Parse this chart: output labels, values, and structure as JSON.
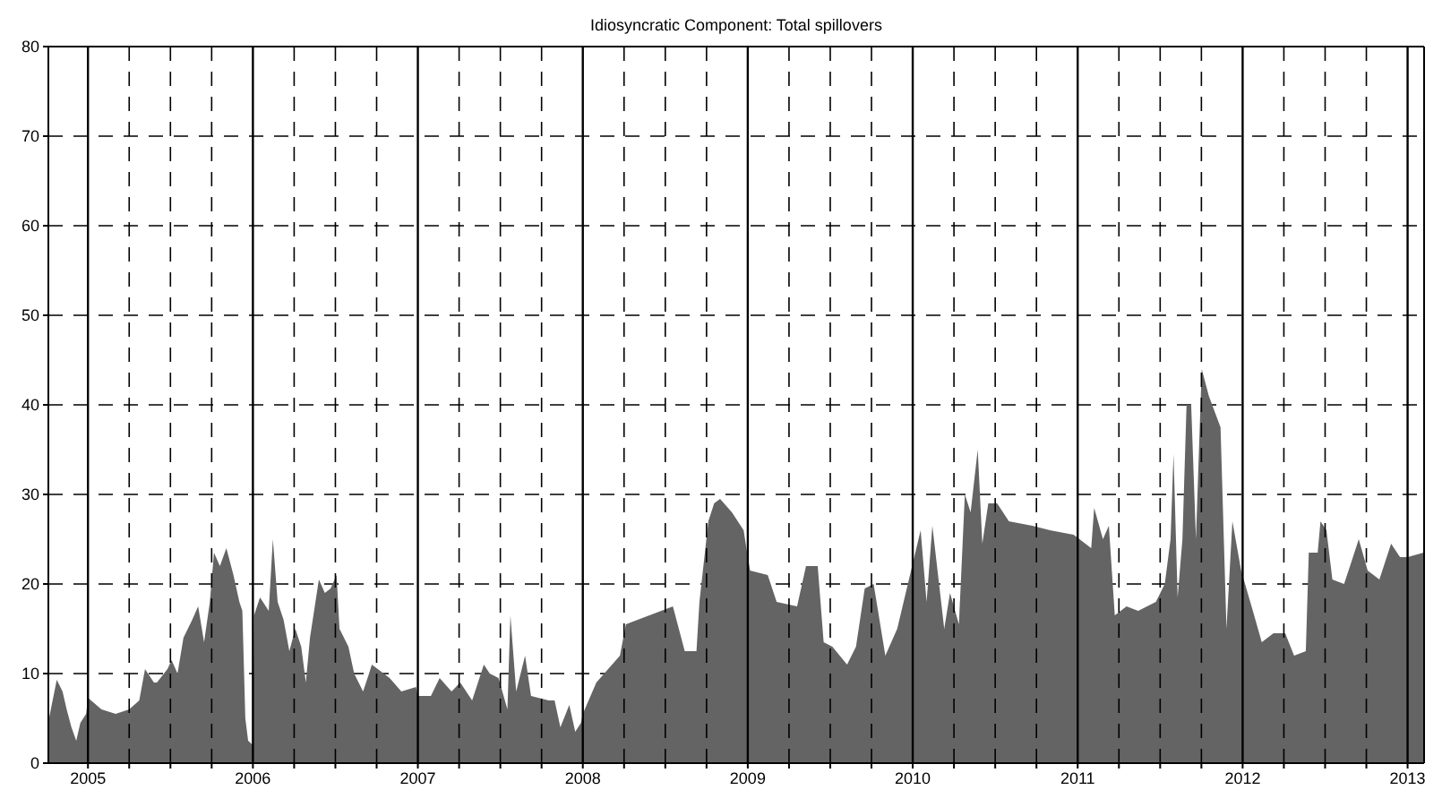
{
  "chart_data": {
    "type": "area",
    "title": "Idiosyncratic Component: Total spillovers",
    "color": "#646464",
    "x": [
      2004.764,
      2004.811,
      2004.846,
      2004.871,
      2004.9,
      2004.929,
      2004.954,
      2004.989,
      2005.0,
      2005.082,
      2005.168,
      2005.25,
      2005.311,
      2005.346,
      2005.4,
      2005.418,
      2005.482,
      2005.507,
      2005.543,
      2005.579,
      2005.632,
      2005.668,
      2005.704,
      2005.739,
      2005.764,
      2005.8,
      2005.839,
      2005.882,
      2005.918,
      2005.936,
      2005.954,
      2005.971,
      2006.0,
      2006.007,
      2006.043,
      2006.096,
      2006.121,
      2006.15,
      2006.186,
      2006.221,
      2006.257,
      2006.293,
      2006.321,
      2006.346,
      2006.4,
      2006.436,
      2006.471,
      2006.507,
      2006.525,
      2006.579,
      2006.614,
      2006.668,
      2006.704,
      2006.721,
      2006.757,
      2006.829,
      2006.9,
      2006.989,
      2007.0,
      2007.079,
      2007.132,
      2007.204,
      2007.257,
      2007.329,
      2007.4,
      2007.436,
      2007.489,
      2007.543,
      2007.561,
      2007.596,
      2007.65,
      2007.686,
      2007.793,
      2007.829,
      2007.864,
      2007.918,
      2007.954,
      2007.989,
      2008.0,
      2008.082,
      2008.225,
      2008.261,
      2008.332,
      2008.475,
      2008.546,
      2008.618,
      2008.689,
      2008.707,
      2008.761,
      2008.796,
      2008.832,
      2008.904,
      2008.975,
      2009.0,
      2009.014,
      2009.121,
      2009.175,
      2009.299,
      2009.353,
      2009.424,
      2009.46,
      2009.513,
      2009.602,
      2009.656,
      2009.709,
      2009.763,
      2009.834,
      2009.906,
      2009.977,
      2010.048,
      2010.084,
      2010.119,
      2010.191,
      2010.226,
      2010.28,
      2010.316,
      2010.351,
      2010.394,
      2010.422,
      2010.458,
      2010.512,
      2010.583,
      2010.725,
      2010.832,
      2010.975,
      2011.011,
      2011.082,
      2011.1,
      2011.153,
      2011.189,
      2011.225,
      2011.296,
      2011.367,
      2011.474,
      2011.528,
      2011.563,
      2011.581,
      2011.606,
      2011.635,
      2011.66,
      2011.688,
      2011.717,
      2011.752,
      2011.795,
      2011.866,
      2011.902,
      2011.938,
      2011.991,
      2012.062,
      2012.116,
      2012.187,
      2012.258,
      2012.312,
      2012.383,
      2012.401,
      2012.455,
      2012.472,
      2012.508,
      2012.544,
      2012.615,
      2012.651,
      2012.704,
      2012.758,
      2012.829,
      2012.9,
      2012.954,
      2013.0,
      2013.096
    ],
    "values": [
      5,
      9.3,
      8,
      6,
      4,
      2.5,
      4.5,
      5.5,
      7.3,
      6,
      5.5,
      6,
      7,
      10.5,
      9,
      9,
      10.5,
      11.5,
      10,
      14,
      16,
      17.5,
      13.5,
      18,
      23.5,
      22,
      24,
      21,
      18,
      17,
      5,
      2.5,
      2,
      16.5,
      18.5,
      17,
      25,
      18,
      16,
      12.5,
      15,
      13,
      9,
      14,
      20.5,
      19,
      19.5,
      21,
      15,
      13,
      10,
      8,
      10,
      11,
      10.5,
      9.5,
      8,
      8.5,
      7.5,
      7.5,
      9.5,
      8,
      9,
      7,
      11,
      10,
      9.5,
      6,
      16.5,
      8,
      12,
      7.5,
      7,
      7,
      4,
      6.5,
      3.5,
      4.5,
      5.5,
      9,
      12,
      15.5,
      16,
      17,
      17.5,
      12.5,
      12.5,
      18,
      27,
      29,
      29.5,
      28,
      26,
      23,
      21.5,
      21,
      18,
      17.5,
      22,
      22,
      13.5,
      13,
      11,
      13,
      19.5,
      20,
      12,
      15,
      20.5,
      26,
      18,
      26.5,
      15,
      19,
      15.5,
      30,
      28,
      35,
      24.5,
      29,
      29,
      27,
      26.5,
      26,
      25.5,
      25,
      24,
      28.5,
      25,
      26.5,
      16.5,
      17.5,
      17,
      18,
      20,
      25,
      34.5,
      18.5,
      25,
      40,
      40,
      25,
      44,
      41,
      37.5,
      15,
      27,
      21.5,
      17,
      13.5,
      14.5,
      14.5,
      12,
      12.5,
      23.5,
      23.5,
      27,
      26,
      20.5,
      20,
      22,
      25,
      21.5,
      20.5,
      24.5,
      23,
      23,
      23.5
    ],
    "xlim": [
      2004.76,
      2013.1
    ],
    "xticks": [
      {
        "value": 2005,
        "label": "2005"
      },
      {
        "value": 2005.25,
        "label": null
      },
      {
        "value": 2005.5,
        "label": null
      },
      {
        "value": 2005.75,
        "label": null
      },
      {
        "value": 2006,
        "label": "2006"
      },
      {
        "value": 2006.25,
        "label": null
      },
      {
        "value": 2006.5,
        "label": null
      },
      {
        "value": 2006.75,
        "label": null
      },
      {
        "value": 2007,
        "label": "2007"
      },
      {
        "value": 2007.25,
        "label": null
      },
      {
        "value": 2007.5,
        "label": null
      },
      {
        "value": 2007.75,
        "label": null
      },
      {
        "value": 2008,
        "label": "2008"
      },
      {
        "value": 2008.25,
        "label": null
      },
      {
        "value": 2008.5,
        "label": null
      },
      {
        "value": 2008.75,
        "label": null
      },
      {
        "value": 2009,
        "label": "2009"
      },
      {
        "value": 2009.25,
        "label": null
      },
      {
        "value": 2009.5,
        "label": null
      },
      {
        "value": 2009.75,
        "label": null
      },
      {
        "value": 2010,
        "label": "2010"
      },
      {
        "value": 2010.25,
        "label": null
      },
      {
        "value": 2010.5,
        "label": null
      },
      {
        "value": 2010.75,
        "label": null
      },
      {
        "value": 2011,
        "label": "2011"
      },
      {
        "value": 2011.25,
        "label": null
      },
      {
        "value": 2011.5,
        "label": null
      },
      {
        "value": 2011.75,
        "label": null
      },
      {
        "value": 2012,
        "label": "2012"
      },
      {
        "value": 2012.25,
        "label": null
      },
      {
        "value": 2012.5,
        "label": null
      },
      {
        "value": 2012.75,
        "label": null
      },
      {
        "value": 2013,
        "label": "2013"
      }
    ],
    "ylim": [
      0,
      80
    ],
    "yticks": [
      0,
      10,
      20,
      30,
      40,
      50,
      60,
      70,
      80
    ],
    "grid": true
  }
}
